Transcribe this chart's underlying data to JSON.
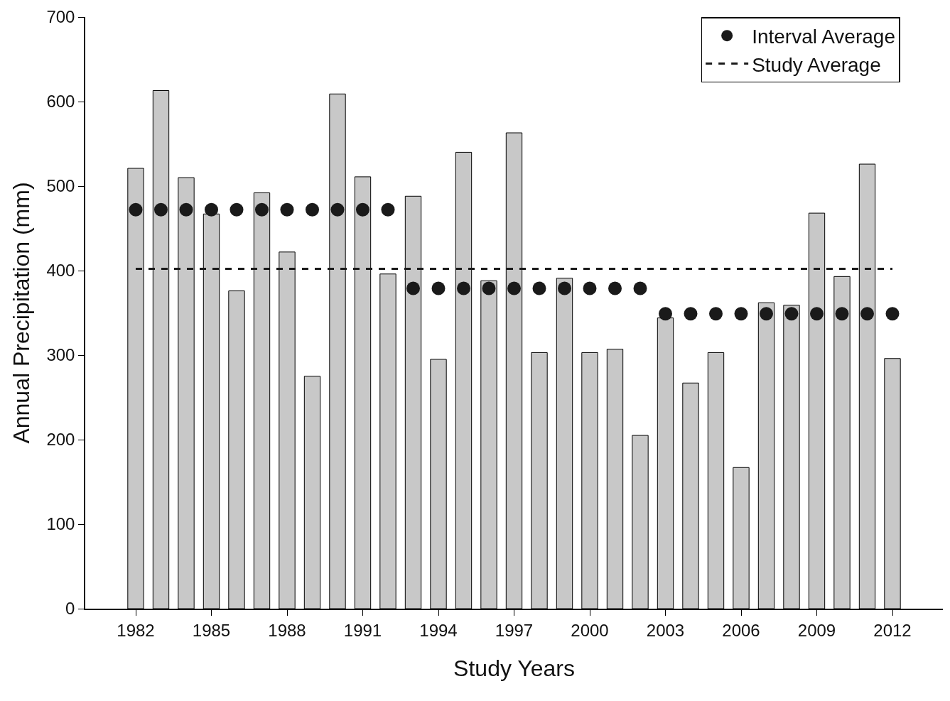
{
  "chart_data": {
    "type": "bar",
    "xlabel": "Study Years",
    "ylabel": "Annual Precipitation (mm)",
    "xlim": [
      1980,
      2014
    ],
    "xticks": [
      1982,
      1985,
      1988,
      1991,
      1994,
      1997,
      2000,
      2003,
      2006,
      2009,
      2012
    ],
    "ylim": [
      0,
      700
    ],
    "yticks": [
      0,
      100,
      200,
      300,
      400,
      500,
      600,
      700
    ],
    "legend": "top right",
    "series": [
      {
        "color": "#c8c8c8",
        "x": [
          1982,
          1983,
          1984,
          1985,
          1986,
          1987,
          1988,
          1989,
          1990,
          1991,
          1992,
          1993,
          1994,
          1995,
          1996,
          1997,
          1998,
          1999,
          2000,
          2001,
          2002,
          2003,
          2004,
          2005,
          2006,
          2007,
          2008,
          2009,
          2010,
          2011,
          2012
        ],
        "values": [
          521,
          613,
          510,
          467,
          376,
          492,
          422,
          275,
          609,
          511,
          396,
          488,
          295,
          540,
          388,
          563,
          303,
          391,
          303,
          307,
          205,
          344,
          267,
          303,
          167,
          362,
          359,
          468,
          393,
          526,
          296
        ]
      },
      {
        "type": "scatter",
        "name": "Interval Average",
        "color": "#1a1a1a",
        "marker": "circle",
        "x": [
          1982,
          1983,
          1984,
          1985,
          1986,
          1987,
          1988,
          1989,
          1990,
          1991,
          1992,
          1993,
          1994,
          1995,
          1996,
          1997,
          1998,
          1999,
          2000,
          2001,
          2002,
          2003,
          2004,
          2005,
          2006,
          2007,
          2008,
          2009,
          2010,
          2011,
          2012
        ],
        "values": [
          472,
          472,
          472,
          472,
          472,
          472,
          472,
          472,
          472,
          472,
          472,
          379,
          379,
          379,
          379,
          379,
          379,
          379,
          379,
          379,
          379,
          349,
          349,
          349,
          349,
          349,
          349,
          349,
          349,
          349,
          349
        ]
      },
      {
        "type": "line",
        "name": "Study Average",
        "color": "#1a1a1a",
        "line_style": "dashed",
        "marker": "none",
        "x": [
          1982,
          2012
        ],
        "values": [
          402,
          402
        ]
      }
    ]
  }
}
